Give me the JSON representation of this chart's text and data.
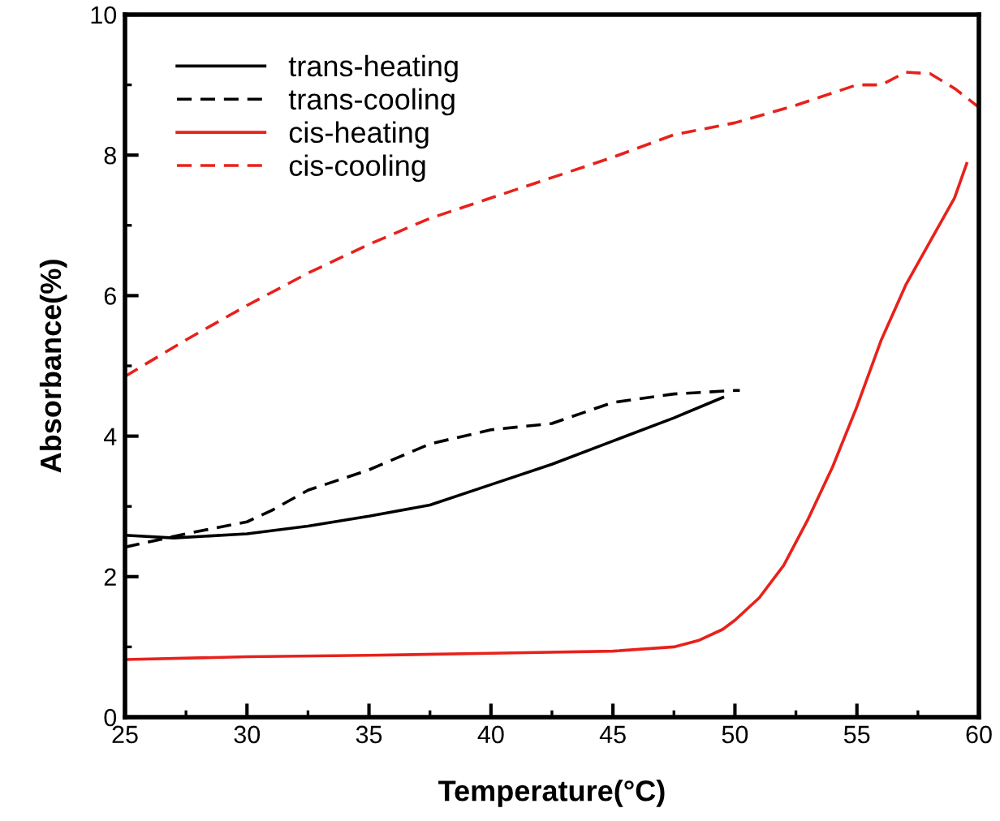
{
  "chart_data": {
    "type": "line",
    "xlabel": "Temperature(°C)",
    "ylabel": "Absorbance(%)",
    "xlim": [
      25,
      60
    ],
    "xticks": [
      25,
      30,
      35,
      40,
      45,
      50,
      55,
      60
    ],
    "ylim": [
      0,
      10
    ],
    "yticks": [
      0,
      2,
      4,
      6,
      8,
      10
    ],
    "grid": false,
    "legend": "top left",
    "series": [
      {
        "name": "trans-heating",
        "color": "#000000",
        "line_style": "solid",
        "x": [
          25,
          27,
          30,
          32.5,
          35,
          37.5,
          40,
          42.5,
          45,
          47.5,
          49.5
        ],
        "values": [
          2.59,
          2.55,
          2.61,
          2.72,
          2.86,
          3.02,
          3.31,
          3.6,
          3.93,
          4.26,
          4.55
        ]
      },
      {
        "name": "trans-cooling",
        "color": "#000000",
        "line_style": "dashed",
        "x": [
          25,
          27.5,
          30,
          31,
          32.5,
          35,
          37.5,
          40,
          42.5,
          45,
          47.5,
          50,
          50.2
        ],
        "values": [
          2.42,
          2.61,
          2.78,
          2.94,
          3.23,
          3.52,
          3.89,
          4.09,
          4.18,
          4.48,
          4.6,
          4.65,
          4.65
        ]
      },
      {
        "name": "cis-heating",
        "color": "#e8211b",
        "line_style": "solid",
        "x": [
          25,
          30,
          35,
          40,
          45,
          47.5,
          48.5,
          49.5,
          50,
          51,
          52,
          53,
          54,
          55,
          56,
          57,
          58,
          59,
          59.5
        ],
        "values": [
          0.82,
          0.86,
          0.88,
          0.91,
          0.94,
          1.0,
          1.09,
          1.25,
          1.38,
          1.7,
          2.16,
          2.82,
          3.56,
          4.42,
          5.37,
          6.15,
          6.77,
          7.39,
          7.88
        ]
      },
      {
        "name": "cis-cooling",
        "color": "#e8211b",
        "line_style": "dashed",
        "x": [
          25,
          27.5,
          30,
          32.5,
          35,
          37.5,
          40,
          42.5,
          45,
          47.5,
          50,
          52.5,
          55,
          56,
          57,
          58,
          59,
          60
        ],
        "values": [
          4.85,
          5.37,
          5.86,
          6.32,
          6.73,
          7.1,
          7.39,
          7.68,
          7.97,
          8.29,
          8.46,
          8.71,
          9.0,
          9.0,
          9.18,
          9.16,
          8.95,
          8.68
        ]
      }
    ]
  }
}
